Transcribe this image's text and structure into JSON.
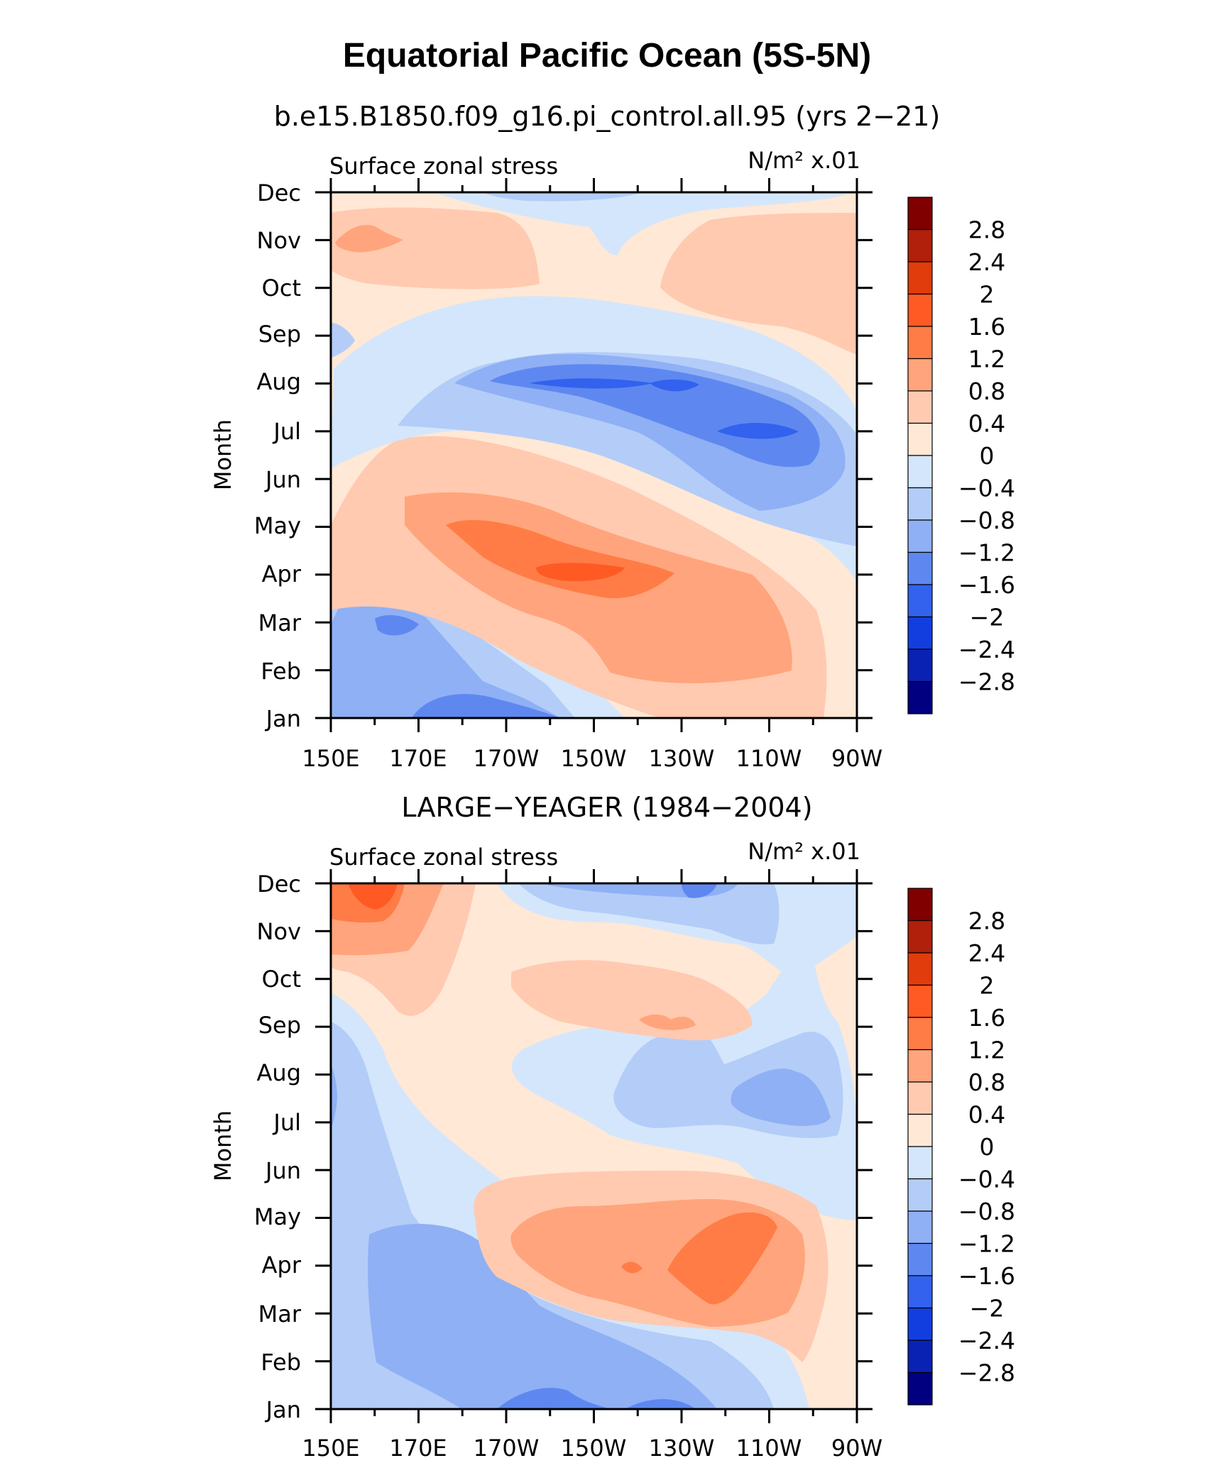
{
  "title": "Equatorial Pacific Ocean (5S-5N)",
  "chart_data": [
    {
      "type": "contour",
      "subtitle": "b.e15.B1850.f09_g16.pi_control.all.95 (yrs 2−21)",
      "left_label": "Surface zonal stress",
      "units": "N/m² x.01",
      "ylabel": "Month",
      "x_ticks": [
        "150E",
        "170E",
        "170W",
        "150W",
        "130W",
        "110W",
        "90W"
      ],
      "y_ticks": [
        "Jan",
        "Feb",
        "Mar",
        "Apr",
        "May",
        "Jun",
        "Jul",
        "Aug",
        "Sep",
        "Oct",
        "Nov",
        "Dec"
      ],
      "lon_range": [
        150,
        270
      ],
      "features": [
        {
          "label": "negative band lower-left",
          "lon": 172,
          "month": 2.3,
          "value": -1.4
        },
        {
          "label": "positive diagonal band",
          "lon": 205,
          "month": 4.0,
          "value": 1.8
        },
        {
          "label": "negative diagonal band",
          "lon": 245,
          "month": 7.4,
          "value": -1.7
        },
        {
          "label": "positive upper-left",
          "lon": 160,
          "month": 10.8,
          "value": 0.8
        },
        {
          "label": "positive upper-right",
          "lon": 258,
          "month": 10.3,
          "value": 0.5
        }
      ]
    },
    {
      "type": "contour",
      "subtitle": "LARGE−YEAGER (1984−2004)",
      "left_label": "Surface zonal stress",
      "units": "N/m² x.01",
      "ylabel": "Month",
      "x_ticks": [
        "150E",
        "170E",
        "170W",
        "150W",
        "130W",
        "110W",
        "90W"
      ],
      "y_ticks": [
        "Jan",
        "Feb",
        "Mar",
        "Apr",
        "May",
        "Jun",
        "Jul",
        "Aug",
        "Sep",
        "Oct",
        "Nov",
        "Dec"
      ],
      "lon_range": [
        150,
        270
      ],
      "features": [
        {
          "label": "positive upper-left",
          "lon": 160,
          "month": 11.5,
          "value": 2.0
        },
        {
          "label": "positive spring band",
          "lon": 240,
          "month": 4.4,
          "value": 1.6
        },
        {
          "label": "negative lower band",
          "lon": 200,
          "month": 1.5,
          "value": -1.6
        },
        {
          "label": "positive autumn band",
          "lon": 222,
          "month": 9.4,
          "value": 0.8
        },
        {
          "label": "negative summer east",
          "lon": 250,
          "month": 7.3,
          "value": -1.0
        }
      ]
    }
  ],
  "colorbar": {
    "labels": [
      "2.8",
      "2.4",
      "2",
      "1.6",
      "1.2",
      "0.8",
      "0.4",
      "0",
      "−0.4",
      "−0.8",
      "−1.2",
      "−1.6",
      "−2",
      "−2.4",
      "−2.8"
    ],
    "colors": [
      "#800000",
      "#b0200a",
      "#e03c0c",
      "#ff5a24",
      "#ff7c46",
      "#ffa47c",
      "#ffcab0",
      "#ffe8d6",
      "#d4e6fb",
      "#b3cdf8",
      "#8fb0f5",
      "#5e88f0",
      "#3262ee",
      "#123ee0",
      "#0a22b4",
      "#000080"
    ]
  }
}
